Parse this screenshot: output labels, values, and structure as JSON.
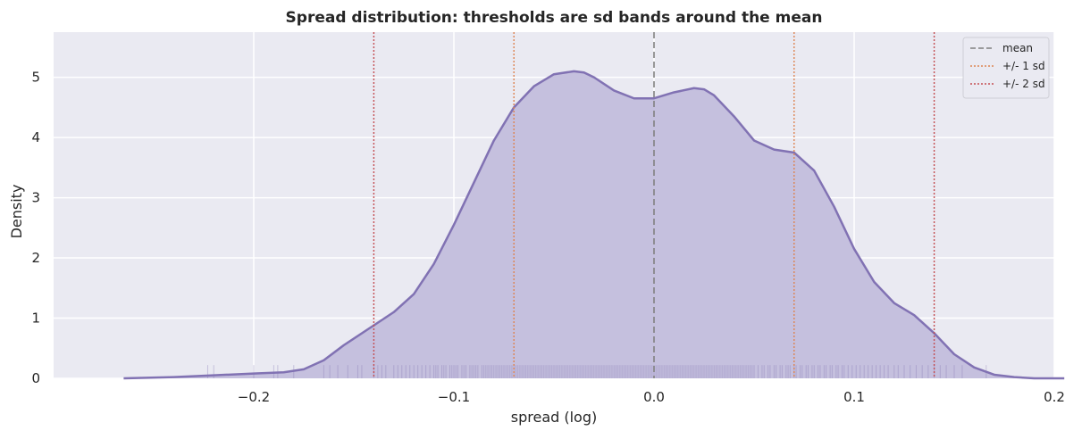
{
  "chart_data": {
    "type": "area",
    "title": "Spread distribution: thresholds are sd bands around the mean",
    "xlabel": "spread (log)",
    "ylabel": "Density",
    "xlim": [
      -0.3,
      0.2
    ],
    "ylim": [
      0,
      5.75
    ],
    "xticks": [
      -0.2,
      -0.1,
      0.0,
      0.1,
      0.2
    ],
    "xtick_labels": [
      "−0.2",
      "−0.1",
      "0.0",
      "0.1",
      "0.2"
    ],
    "yticks": [
      0,
      1,
      2,
      3,
      4,
      5
    ],
    "ytick_labels": [
      "0",
      "1",
      "2",
      "3",
      "4",
      "5"
    ],
    "grid": true,
    "legend_position": "top-right",
    "series": [
      {
        "kind": "kde",
        "color": "#8172b3",
        "fill_color": "#c5c0de",
        "x": [
          -0.265,
          -0.24,
          -0.22,
          -0.2,
          -0.185,
          -0.175,
          -0.165,
          -0.155,
          -0.14,
          -0.13,
          -0.12,
          -0.11,
          -0.1,
          -0.09,
          -0.08,
          -0.07,
          -0.06,
          -0.05,
          -0.04,
          -0.035,
          -0.03,
          -0.02,
          -0.01,
          0.0,
          0.01,
          0.02,
          0.025,
          0.03,
          0.04,
          0.05,
          0.06,
          0.07,
          0.08,
          0.09,
          0.1,
          0.11,
          0.12,
          0.13,
          0.14,
          0.15,
          0.16,
          0.17,
          0.18,
          0.19,
          0.2,
          0.205
        ],
        "y": [
          0.0,
          0.02,
          0.05,
          0.08,
          0.1,
          0.15,
          0.3,
          0.55,
          0.88,
          1.1,
          1.4,
          1.9,
          2.55,
          3.25,
          3.95,
          4.5,
          4.85,
          5.05,
          5.1,
          5.08,
          5.0,
          4.78,
          4.65,
          4.65,
          4.75,
          4.82,
          4.8,
          4.7,
          4.35,
          3.95,
          3.8,
          3.75,
          3.45,
          2.85,
          2.15,
          1.6,
          1.25,
          1.05,
          0.75,
          0.4,
          0.18,
          0.06,
          0.02,
          0.0,
          0.0,
          0.0
        ]
      }
    ],
    "rug": {
      "color": "#8172b3",
      "height": 0.22,
      "values": [
        -0.223,
        -0.22,
        -0.2,
        -0.19,
        -0.188,
        -0.18,
        -0.165,
        -0.162,
        -0.158,
        -0.153,
        -0.148,
        -0.146,
        -0.14,
        -0.138,
        -0.136,
        -0.134,
        -0.13,
        -0.128,
        -0.126,
        -0.124,
        -0.122,
        -0.12,
        -0.118,
        -0.116,
        -0.114,
        -0.112,
        -0.11,
        -0.109,
        -0.108,
        -0.106,
        -0.105,
        -0.104,
        -0.102,
        -0.101,
        -0.1,
        -0.099,
        -0.098,
        -0.096,
        -0.095,
        -0.094,
        -0.092,
        -0.091,
        -0.09,
        -0.089,
        -0.088,
        -0.086,
        -0.085,
        -0.084,
        -0.083,
        -0.082,
        -0.081,
        -0.08,
        -0.079,
        -0.078,
        -0.077,
        -0.076,
        -0.075,
        -0.074,
        -0.073,
        -0.072,
        -0.071,
        -0.07,
        -0.069,
        -0.068,
        -0.067,
        -0.066,
        -0.065,
        -0.064,
        -0.063,
        -0.062,
        -0.061,
        -0.06,
        -0.059,
        -0.058,
        -0.057,
        -0.056,
        -0.055,
        -0.054,
        -0.053,
        -0.052,
        -0.051,
        -0.05,
        -0.049,
        -0.048,
        -0.047,
        -0.046,
        -0.045,
        -0.044,
        -0.043,
        -0.042,
        -0.041,
        -0.04,
        -0.039,
        -0.038,
        -0.037,
        -0.036,
        -0.035,
        -0.034,
        -0.033,
        -0.032,
        -0.031,
        -0.03,
        -0.029,
        -0.028,
        -0.027,
        -0.026,
        -0.025,
        -0.024,
        -0.023,
        -0.022,
        -0.021,
        -0.02,
        -0.019,
        -0.018,
        -0.017,
        -0.016,
        -0.015,
        -0.014,
        -0.013,
        -0.012,
        -0.011,
        -0.01,
        -0.009,
        -0.008,
        -0.007,
        -0.006,
        -0.005,
        -0.004,
        -0.003,
        -0.002,
        -0.001,
        0.0,
        0.001,
        0.002,
        0.003,
        0.004,
        0.005,
        0.006,
        0.007,
        0.008,
        0.009,
        0.01,
        0.011,
        0.012,
        0.013,
        0.014,
        0.015,
        0.016,
        0.017,
        0.018,
        0.019,
        0.02,
        0.021,
        0.022,
        0.023,
        0.024,
        0.025,
        0.026,
        0.027,
        0.028,
        0.029,
        0.03,
        0.031,
        0.032,
        0.033,
        0.034,
        0.035,
        0.036,
        0.037,
        0.038,
        0.039,
        0.04,
        0.041,
        0.042,
        0.043,
        0.044,
        0.045,
        0.046,
        0.047,
        0.048,
        0.049,
        0.05,
        0.052,
        0.054,
        0.055,
        0.057,
        0.058,
        0.06,
        0.061,
        0.063,
        0.064,
        0.066,
        0.067,
        0.068,
        0.07,
        0.071,
        0.073,
        0.074,
        0.076,
        0.077,
        0.079,
        0.08,
        0.082,
        0.083,
        0.085,
        0.086,
        0.088,
        0.089,
        0.091,
        0.092,
        0.094,
        0.095,
        0.097,
        0.099,
        0.101,
        0.103,
        0.105,
        0.107,
        0.109,
        0.111,
        0.113,
        0.115,
        0.117,
        0.12,
        0.122,
        0.125,
        0.128,
        0.131,
        0.134,
        0.137,
        0.14,
        0.143,
        0.146,
        0.15,
        0.154,
        0.166
      ]
    },
    "reference_lines": [
      {
        "name": "mean",
        "x": 0.0,
        "color": "#808080",
        "style": "dashed"
      },
      {
        "name": "+/- 1 sd",
        "x": -0.07,
        "color": "#dd8452",
        "style": "dotted"
      },
      {
        "name": "+/- 1 sd",
        "x": 0.07,
        "color": "#dd8452",
        "style": "dotted"
      },
      {
        "name": "+/- 2 sd",
        "x": -0.14,
        "color": "#c44e52",
        "style": "dotted"
      },
      {
        "name": "+/- 2 sd",
        "x": 0.14,
        "color": "#c44e52",
        "style": "dotted"
      }
    ],
    "legend": [
      {
        "label": "mean",
        "color": "#808080",
        "style": "dashed"
      },
      {
        "label": "+/- 1 sd",
        "color": "#dd8452",
        "style": "dotted"
      },
      {
        "label": "+/- 2 sd",
        "color": "#c44e52",
        "style": "dotted"
      }
    ],
    "background_color": "#eaeaf2",
    "grid_color": "#ffffff"
  }
}
